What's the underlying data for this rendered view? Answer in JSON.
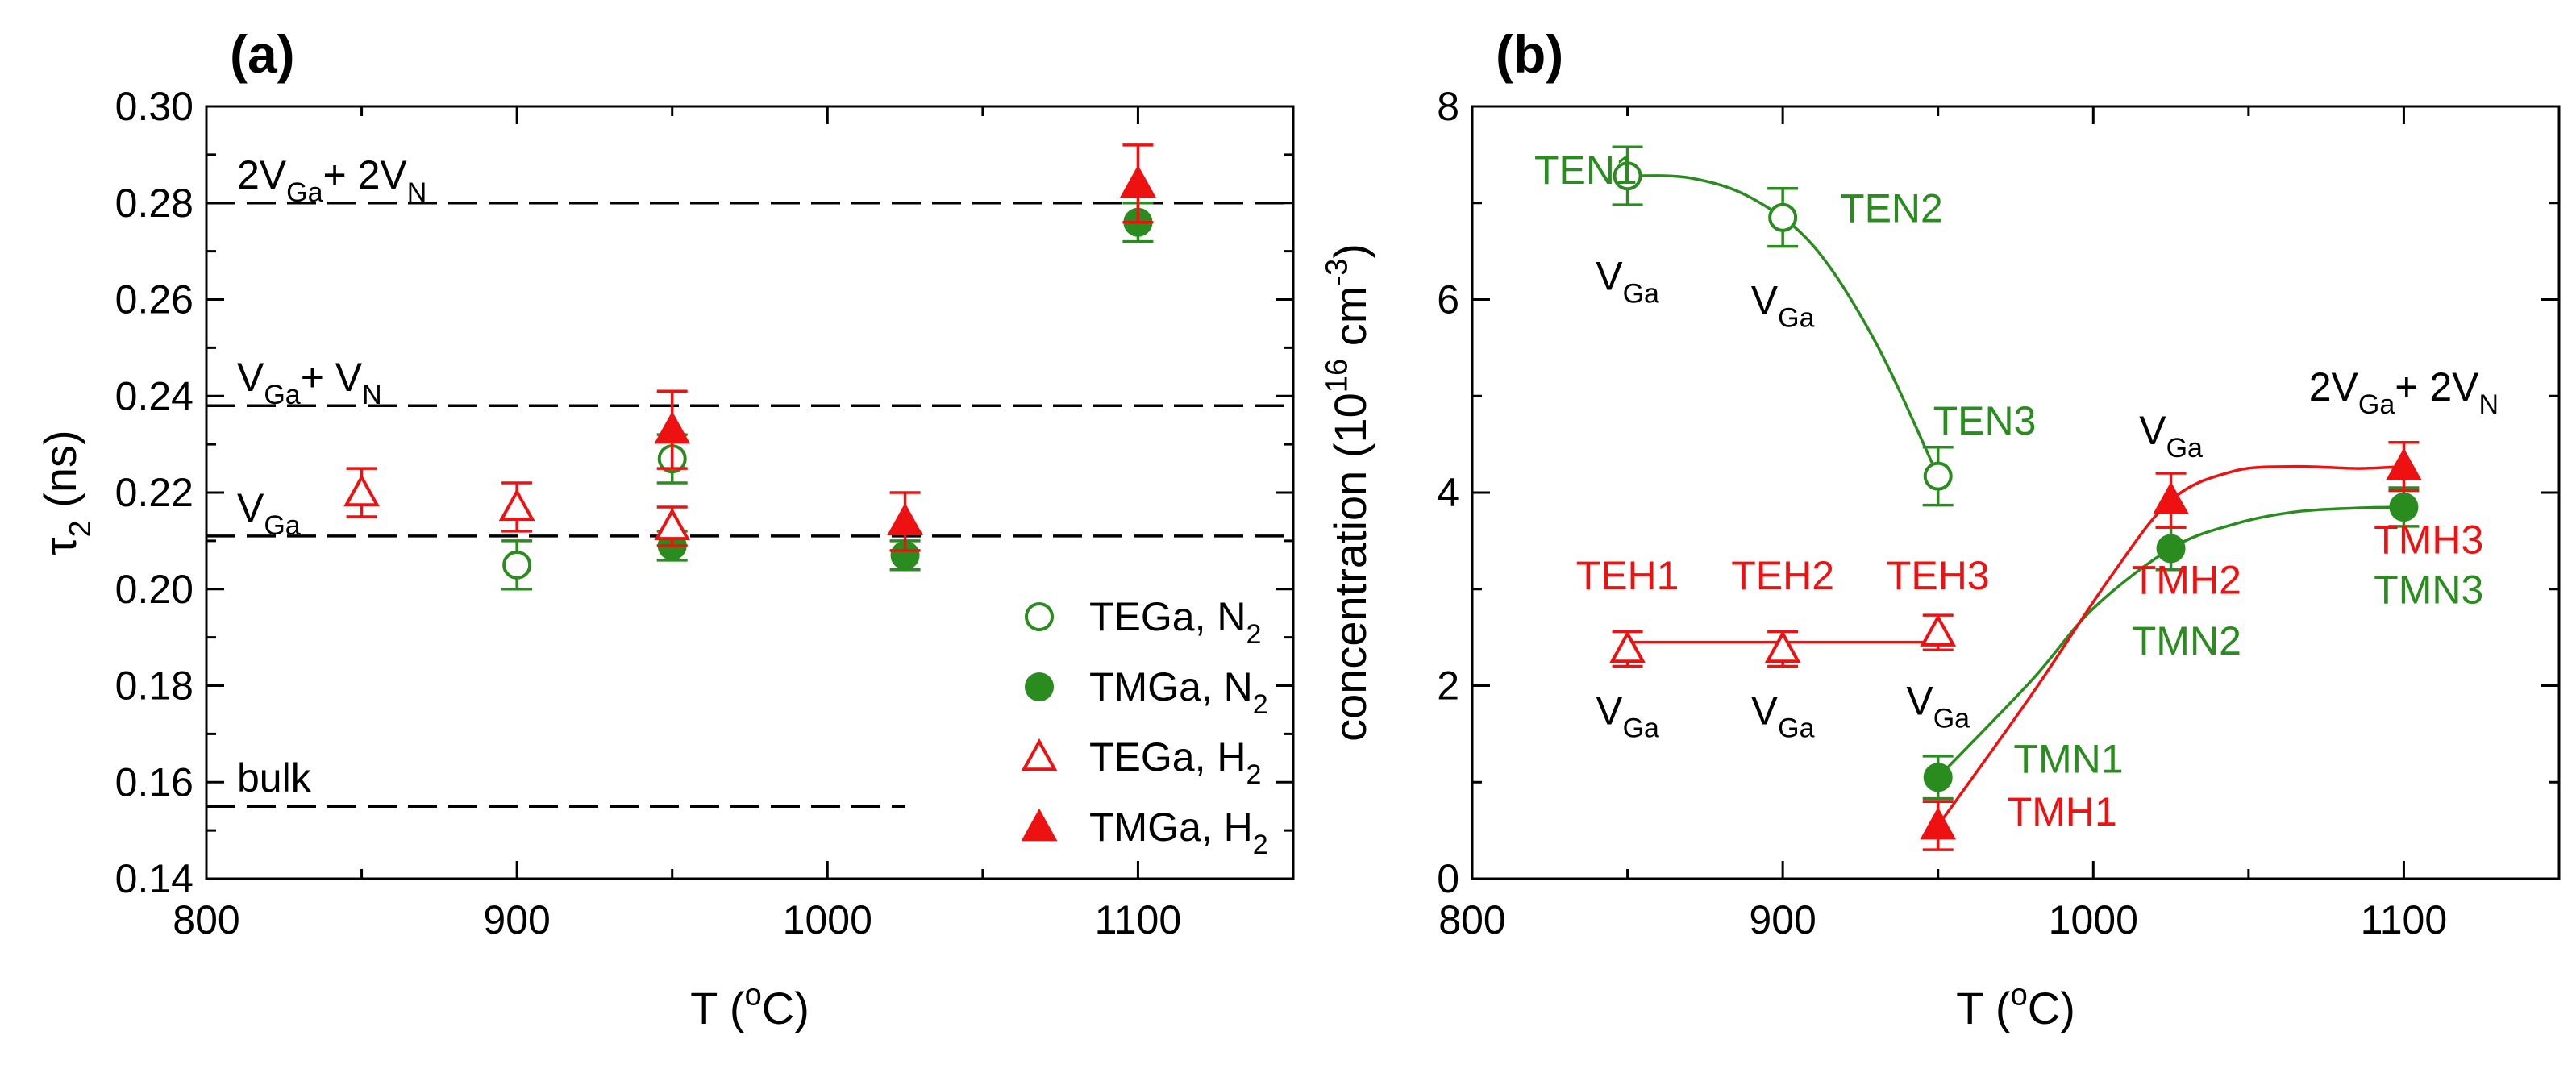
{
  "colors": {
    "green": "#2a8c1f",
    "red": "#ee1111",
    "black": "#000000"
  },
  "chart_data": [
    {
      "type": "scatter",
      "panel_label": "(a)",
      "xlabel": {
        "main": "T (",
        "sup": "o",
        "tail": "C)"
      },
      "ylabel": {
        "main": "τ",
        "sub": "2",
        "tail": " (ns)"
      },
      "xlim": [
        800,
        1150
      ],
      "ylim": [
        0.14,
        0.3
      ],
      "xticks": [
        "800",
        "900",
        "1000",
        "1100"
      ],
      "xtick_values": [
        800,
        900,
        1000,
        1100
      ],
      "yticks": [
        "0.14",
        "0.16",
        "0.18",
        "0.20",
        "0.22",
        "0.24",
        "0.26",
        "0.28",
        "0.30"
      ],
      "ytick_values": [
        0.14,
        0.16,
        0.18,
        0.2,
        0.22,
        0.24,
        0.26,
        0.28,
        0.3
      ],
      "reference_lines": [
        {
          "name": "2vga-2vn",
          "y": 0.28,
          "label": [
            [
              "2V",
              ""
            ],
            [
              "Ga",
              "sub"
            ],
            [
              "+ 2V",
              ""
            ],
            [
              "N",
              "sub"
            ]
          ]
        },
        {
          "name": "vga-vn",
          "y": 0.238,
          "label": [
            [
              "V",
              ""
            ],
            [
              "Ga",
              "sub"
            ],
            [
              "+ V",
              ""
            ],
            [
              "N",
              "sub"
            ]
          ]
        },
        {
          "name": "vga",
          "y": 0.211,
          "label": [
            [
              "V",
              ""
            ],
            [
              "Ga",
              "sub"
            ]
          ]
        },
        {
          "name": "bulk",
          "y": 0.155,
          "label": [
            [
              "bulk",
              ""
            ]
          ]
        }
      ],
      "series": [
        {
          "name": "TEGa, N2",
          "label": [
            [
              "TEGa, N",
              ""
            ],
            [
              "2",
              "sub"
            ]
          ],
          "marker": "circle-open",
          "color": "green",
          "x": [
            900,
            950
          ],
          "y": [
            0.205,
            0.227
          ],
          "err": [
            0.005,
            0.005
          ]
        },
        {
          "name": "TMGa, N2",
          "label": [
            [
              "TMGa, N",
              ""
            ],
            [
              "2",
              "sub"
            ]
          ],
          "marker": "circle-filled",
          "color": "green",
          "x": [
            950,
            1025,
            1100
          ],
          "y": [
            0.209,
            0.207,
            0.276
          ],
          "err": [
            0.003,
            0.003,
            0.004
          ]
        },
        {
          "name": "TEGa, H2",
          "label": [
            [
              "TEGa, H",
              ""
            ],
            [
              "2",
              "sub"
            ]
          ],
          "marker": "triangle-open",
          "color": "red",
          "x": [
            850,
            900,
            950
          ],
          "y": [
            0.22,
            0.217,
            0.213
          ],
          "err": [
            0.005,
            0.005,
            0.004
          ]
        },
        {
          "name": "TMGa, H2",
          "label": [
            [
              "TMGa, H",
              ""
            ],
            [
              "2",
              "sub"
            ]
          ],
          "marker": "triangle-filled",
          "color": "red",
          "x": [
            950,
            1025,
            1100
          ],
          "y": [
            0.233,
            0.214,
            0.284
          ],
          "err": [
            0.008,
            0.006,
            0.008
          ]
        }
      ]
    },
    {
      "type": "scatter",
      "panel_label": "(b)",
      "xlabel": {
        "main": "T (",
        "sup": "o",
        "tail": "C)"
      },
      "ylabel": {
        "main": "concentration (10",
        "sup": "16",
        "mid": " cm",
        "sup2": "-3",
        "tail": ")"
      },
      "xlim": [
        800,
        1150
      ],
      "ylim": [
        0,
        8
      ],
      "xticks": [
        "800",
        "900",
        "1000",
        "1100"
      ],
      "xtick_values": [
        800,
        900,
        1000,
        1100
      ],
      "yticks": [
        "0",
        "2",
        "4",
        "6",
        "8"
      ],
      "ytick_values": [
        0,
        2,
        4,
        6,
        8
      ],
      "series": [
        {
          "name": "TEN",
          "marker": "circle-open",
          "color": "green",
          "x": [
            850,
            900,
            950
          ],
          "y": [
            7.28,
            6.85,
            4.17
          ],
          "err": [
            0.3,
            0.3,
            0.3
          ],
          "curve_x": [
            850,
            870,
            890,
            910,
            930,
            950
          ],
          "curve_y": [
            7.28,
            7.26,
            7.05,
            6.55,
            5.55,
            4.17
          ]
        },
        {
          "name": "TEH",
          "marker": "triangle-open",
          "color": "red",
          "x": [
            850,
            900,
            950
          ],
          "y": [
            2.38,
            2.38,
            2.55
          ],
          "err": [
            0.18,
            0.18,
            0.18
          ],
          "curve_x": [
            850,
            950
          ],
          "curve_y": [
            2.45,
            2.45
          ]
        },
        {
          "name": "TMN",
          "marker": "circle-filled",
          "color": "green",
          "x": [
            950,
            1025,
            1100
          ],
          "y": [
            1.05,
            3.42,
            3.85
          ],
          "err": [
            0.22,
            0.22,
            0.2
          ],
          "curve_x": [
            950,
            980,
            1000,
            1025,
            1045,
            1065,
            1085,
            1100
          ],
          "curve_y": [
            1.05,
            2.05,
            2.8,
            3.42,
            3.67,
            3.8,
            3.84,
            3.85
          ]
        },
        {
          "name": "TMH",
          "marker": "triangle-filled",
          "color": "red",
          "x": [
            950,
            1025,
            1100
          ],
          "y": [
            0.55,
            3.92,
            4.27
          ],
          "err": [
            0.25,
            0.28,
            0.25
          ],
          "curve_x": [
            950,
            980,
            1005,
            1025,
            1045,
            1065,
            1085,
            1100
          ],
          "curve_y": [
            0.55,
            1.9,
            3.1,
            3.92,
            4.22,
            4.27,
            4.25,
            4.27
          ]
        }
      ],
      "annotations": [
        {
          "name": "ten1",
          "text": [
            [
              "TEN1",
              ""
            ]
          ],
          "x": 820,
          "y": 7.2,
          "color": "green"
        },
        {
          "name": "ten2",
          "text": [
            [
              "TEN2",
              ""
            ]
          ],
          "x": 935,
          "y": 6.8,
          "color": "green"
        },
        {
          "name": "ten3",
          "text": [
            [
              "TEN3",
              ""
            ]
          ],
          "x": 965,
          "y": 4.6,
          "color": "green"
        },
        {
          "name": "teh1",
          "text": [
            [
              "TEH1",
              ""
            ]
          ],
          "x": 850,
          "y": 3.0,
          "color": "red"
        },
        {
          "name": "teh2",
          "text": [
            [
              "TEH2",
              ""
            ]
          ],
          "x": 900,
          "y": 3.0,
          "color": "red"
        },
        {
          "name": "teh3",
          "text": [
            [
              "TEH3",
              ""
            ]
          ],
          "x": 950,
          "y": 3.0,
          "color": "red"
        },
        {
          "name": "tmh1",
          "text": [
            [
              "TMH1",
              ""
            ]
          ],
          "x": 990,
          "y": 0.55,
          "color": "red"
        },
        {
          "name": "tmn1",
          "text": [
            [
              "TMN1",
              ""
            ]
          ],
          "x": 992,
          "y": 1.1,
          "color": "green"
        },
        {
          "name": "tmh2",
          "text": [
            [
              "TMH2",
              ""
            ]
          ],
          "x": 1030,
          "y": 2.95,
          "color": "red"
        },
        {
          "name": "tmn2",
          "text": [
            [
              "TMN2",
              ""
            ]
          ],
          "x": 1030,
          "y": 2.32,
          "color": "green"
        },
        {
          "name": "tmh3",
          "text": [
            [
              "TMH3",
              ""
            ]
          ],
          "x": 1108,
          "y": 3.37,
          "color": "red"
        },
        {
          "name": "tmn3",
          "text": [
            [
              "TMN3",
              ""
            ]
          ],
          "x": 1108,
          "y": 2.85,
          "color": "green"
        },
        {
          "name": "vga-1",
          "text": [
            [
              "V",
              ""
            ],
            [
              "Ga",
              "sub"
            ]
          ],
          "x": 850,
          "y": 6.1,
          "color": "black"
        },
        {
          "name": "vga-2",
          "text": [
            [
              "V",
              ""
            ],
            [
              "Ga",
              "sub"
            ]
          ],
          "x": 900,
          "y": 5.85,
          "color": "black"
        },
        {
          "name": "vga-3",
          "text": [
            [
              "V",
              ""
            ],
            [
              "Ga",
              "sub"
            ]
          ],
          "x": 850,
          "y": 1.6,
          "color": "black"
        },
        {
          "name": "vga-4",
          "text": [
            [
              "V",
              ""
            ],
            [
              "Ga",
              "sub"
            ]
          ],
          "x": 900,
          "y": 1.6,
          "color": "black"
        },
        {
          "name": "vga-5",
          "text": [
            [
              "V",
              ""
            ],
            [
              "Ga",
              "sub"
            ]
          ],
          "x": 950,
          "y": 1.7,
          "color": "black"
        },
        {
          "name": "vga-6",
          "text": [
            [
              "V",
              ""
            ],
            [
              "Ga",
              "sub"
            ]
          ],
          "x": 1025,
          "y": 4.5,
          "color": "black"
        },
        {
          "name": "2vga-2vn",
          "text": [
            [
              "2V",
              ""
            ],
            [
              "Ga",
              "sub"
            ],
            [
              "+ 2V",
              ""
            ],
            [
              "N",
              "sub"
            ]
          ],
          "x": 1100,
          "y": 4.95,
          "color": "black"
        }
      ]
    }
  ]
}
